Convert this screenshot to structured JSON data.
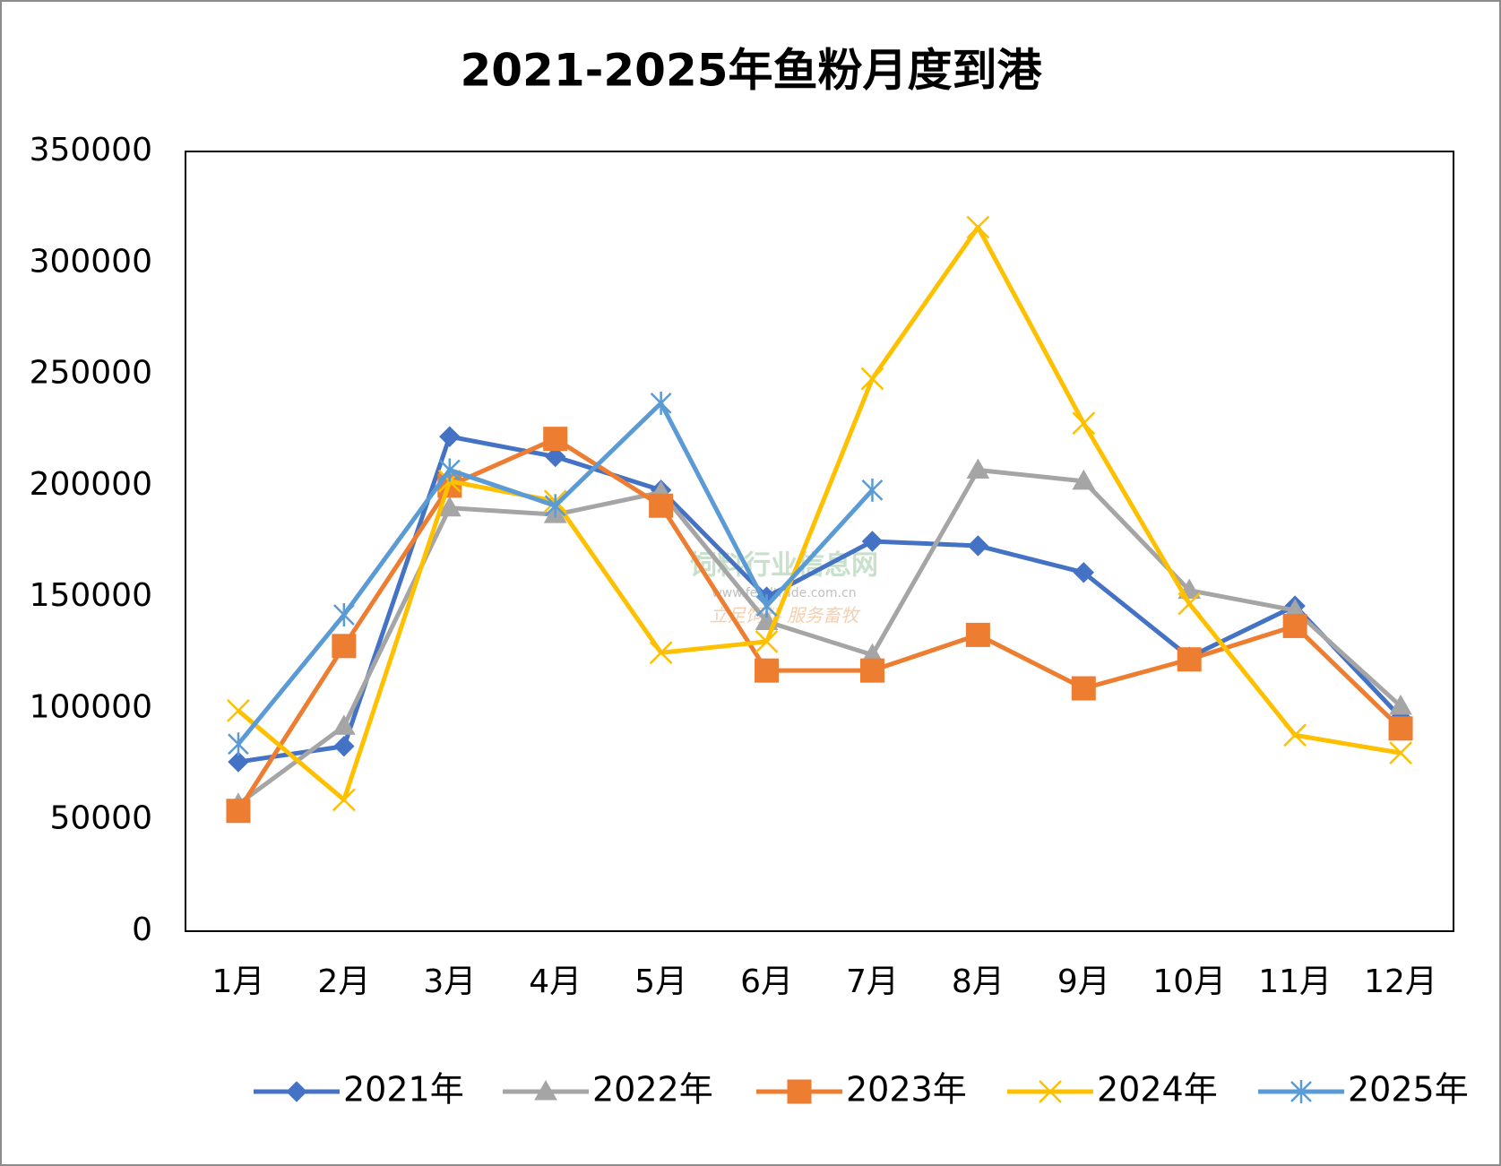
{
  "chart_data": {
    "type": "line",
    "title": "2021-2025年鱼粉月度到港",
    "categories": [
      "1月",
      "2月",
      "3月",
      "4月",
      "5月",
      "6月",
      "7月",
      "8月",
      "9月",
      "10月",
      "11月",
      "12月"
    ],
    "series": [
      {
        "name": "2021年",
        "color": "#4472c4",
        "marker": "diamond",
        "values": [
          76000,
          83000,
          222000,
          213000,
          198000,
          150000,
          175000,
          173000,
          161000,
          123000,
          146000,
          96000
        ]
      },
      {
        "name": "2022年",
        "color": "#a5a5a5",
        "marker": "triangle",
        "values": [
          57000,
          92000,
          190000,
          187000,
          197000,
          139000,
          124000,
          207000,
          202000,
          153000,
          144000,
          101000
        ]
      },
      {
        "name": "2023年",
        "color": "#ed7d31",
        "marker": "square",
        "values": [
          54000,
          128000,
          200000,
          221000,
          191000,
          117000,
          117000,
          133000,
          109000,
          122000,
          137000,
          91000
        ]
      },
      {
        "name": "2024年",
        "color": "#ffc000",
        "marker": "x",
        "values": [
          99000,
          59000,
          202000,
          193000,
          125000,
          130000,
          248000,
          316000,
          228000,
          147000,
          88000,
          80000
        ]
      },
      {
        "name": "2025年",
        "color": "#5b9bd5",
        "marker": "star",
        "values": [
          84000,
          142000,
          207000,
          191000,
          237000,
          146000,
          198000,
          null,
          null,
          null,
          null,
          null
        ]
      }
    ],
    "ylim": [
      0,
      350000
    ],
    "yticks": [
      0,
      50000,
      100000,
      150000,
      200000,
      250000,
      300000,
      350000
    ],
    "grid": false,
    "legend": "bottom",
    "annotations": [
      "饲料行业信息网",
      "www.feedtrade.com.cn",
      "立足饲料  服务畜牧"
    ]
  }
}
